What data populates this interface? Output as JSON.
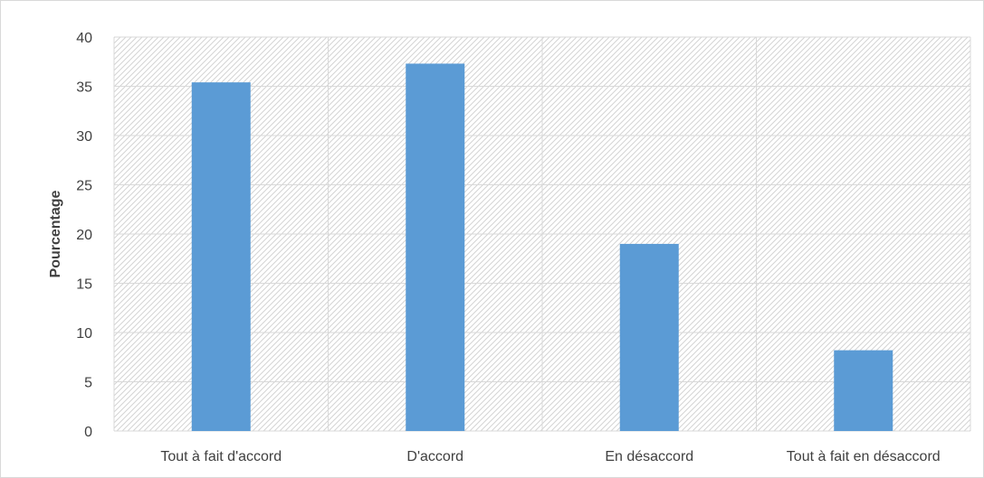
{
  "chart_data": {
    "type": "bar",
    "title": "",
    "xlabel": "",
    "ylabel": "Pourcentage",
    "categories": [
      "Tout à fait d'accord",
      "D'accord",
      "En désaccord",
      "Tout à fait en désaccord"
    ],
    "values": [
      35.4,
      37.3,
      19.0,
      8.2
    ],
    "ylim": [
      0,
      40
    ],
    "yticks": [
      "0",
      "5",
      "10",
      "15",
      "20",
      "25",
      "30",
      "35",
      "40"
    ],
    "grid": true,
    "legend": "none",
    "colors": {
      "bar": "#5b9bd5",
      "grid": "#d9d9d9",
      "hatch": "#d4d4d4",
      "text": "#404040"
    }
  }
}
